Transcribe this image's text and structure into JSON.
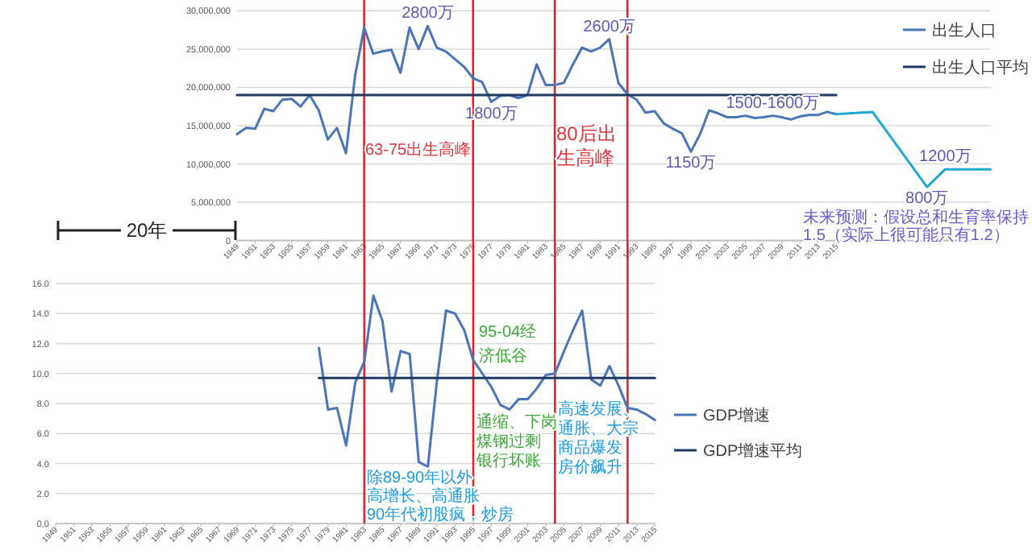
{
  "chart_data": [
    {
      "type": "line",
      "grid": "y",
      "legend": "right",
      "xlim": [
        1949,
        2032
      ],
      "xticks": [
        1949,
        1951,
        1953,
        1955,
        1957,
        1959,
        1961,
        1963,
        1965,
        1967,
        1969,
        1971,
        1973,
        1975,
        1977,
        1979,
        1981,
        1983,
        1985,
        1987,
        1989,
        1991,
        1993,
        1995,
        1997,
        1999,
        2001,
        2003,
        2005,
        2007,
        2009,
        2011,
        2013,
        2015
      ],
      "ylim": [
        0,
        30000000
      ],
      "yticks": [
        0,
        {
          "value": 5000000,
          "label": "5,000,000"
        },
        {
          "value": 10000000,
          "label": "10,000,000"
        },
        {
          "value": 15000000,
          "label": "15,000,000"
        },
        {
          "value": 20000000,
          "label": "20,000,000"
        },
        {
          "value": 25000000,
          "label": "25,000,000"
        },
        {
          "value": 30000000,
          "label": "30,000,000"
        }
      ],
      "series": [
        {
          "name": "出生人口",
          "color": "#4a76b8",
          "x": [
            1949,
            1950,
            1951,
            1952,
            1953,
            1954,
            1955,
            1956,
            1957,
            1958,
            1959,
            1960,
            1961,
            1962,
            1963,
            1964,
            1965,
            1966,
            1967,
            1968,
            1969,
            1970,
            1971,
            1972,
            1973,
            1974,
            1975,
            1976,
            1977,
            1978,
            1979,
            1980,
            1981,
            1982,
            1983,
            1984,
            1985,
            1986,
            1987,
            1988,
            1989,
            1990,
            1991,
            1992,
            1993,
            1994,
            1995,
            1996,
            1997,
            1998,
            1999,
            2000,
            2001,
            2002,
            2003,
            2004,
            2005,
            2006,
            2007,
            2008,
            2009,
            2010,
            2011,
            2012,
            2013,
            2014,
            2015
          ],
          "values": [
            13900000,
            14700000,
            14600000,
            17200000,
            16900000,
            18400000,
            18500000,
            17500000,
            19000000,
            17000000,
            13200000,
            14700000,
            11400000,
            21500000,
            27800000,
            24400000,
            24700000,
            24900000,
            21900000,
            27800000,
            25000000,
            28000000,
            25200000,
            24700000,
            23700000,
            22700000,
            21200000,
            20700000,
            18100000,
            18900000,
            19000000,
            18600000,
            19000000,
            23000000,
            20300000,
            20300000,
            20600000,
            23000000,
            25200000,
            24700000,
            25200000,
            26300000,
            20600000,
            19100000,
            18400000,
            16700000,
            16900000,
            15300000,
            14600000,
            14000000,
            11600000,
            13900000,
            17000000,
            16600000,
            16100000,
            16100000,
            16300000,
            16000000,
            16100000,
            16300000,
            16100000,
            15800000,
            16200000,
            16400000,
            16400000,
            16800000,
            16500000
          ]
        },
        {
          "color": "#1fa8d0",
          "x": [
            2015,
            2019,
            2025,
            2027,
            2032
          ],
          "values": [
            16500000,
            16800000,
            7000000,
            9300000,
            9300000
          ]
        },
        {
          "name": "出生人口平均",
          "color": "#1f3a60",
          "x": [
            1949,
            2015
          ],
          "values": [
            19000000,
            19000000
          ]
        }
      ],
      "ref_lines": [
        {
          "axis": "x",
          "value": 1963,
          "color": "#d9262b"
        },
        {
          "axis": "x",
          "value": 1975,
          "color": "#d9262b"
        },
        {
          "axis": "x",
          "value": 1984,
          "color": "#d9262b"
        },
        {
          "axis": "x",
          "value": 1992,
          "color": "#d9262b"
        }
      ],
      "annotations": [
        {
          "text": "2800万",
          "x": 1970,
          "y": 28000000
        },
        {
          "text": "1800万",
          "x": 1977,
          "y": 18100000
        },
        {
          "text": "2600万",
          "x": 1990,
          "y": 26300000
        },
        {
          "text": "1150万",
          "x": 1999,
          "y": 11600000
        },
        {
          "text": "1500-1600万",
          "x": 2008,
          "y": 16300000
        },
        {
          "text": "800万",
          "x": 2025,
          "y": 7000000
        },
        {
          "text": "1200万",
          "x": 2027,
          "y": 9300000
        },
        "63-75出生高峰",
        "80后出生高峰",
        "未来预测：假设总和生育率保持1.5（实际上很可能只有1.2）",
        "20年"
      ]
    },
    {
      "type": "line",
      "grid": "y",
      "legend": "right",
      "xlim": [
        1949,
        2015
      ],
      "xticks": [
        1949,
        1951,
        1953,
        1955,
        1957,
        1959,
        1961,
        1963,
        1965,
        1967,
        1969,
        1971,
        1973,
        1975,
        1977,
        1979,
        1981,
        1983,
        1985,
        1987,
        1989,
        1991,
        1993,
        1995,
        1997,
        1999,
        2001,
        2003,
        2005,
        2007,
        2009,
        2011,
        2013,
        2015
      ],
      "ylim": [
        0,
        16
      ],
      "yticks": [
        {
          "value": 0,
          "label": "0.0"
        },
        {
          "value": 2,
          "label": "2.0"
        },
        {
          "value": 4,
          "label": "4.0"
        },
        {
          "value": 6,
          "label": "6.0"
        },
        {
          "value": 8,
          "label": "8.0"
        },
        {
          "value": 10,
          "label": "10.0"
        },
        {
          "value": 12,
          "label": "12.0"
        },
        {
          "value": 14,
          "label": "14.0"
        },
        {
          "value": 16,
          "label": "16.0"
        }
      ],
      "series": [
        {
          "name": "GDP增速",
          "color": "#4a76b8",
          "x": [
            1978,
            1979,
            1980,
            1981,
            1982,
            1983,
            1984,
            1985,
            1986,
            1987,
            1988,
            1989,
            1990,
            1991,
            1992,
            1993,
            1994,
            1995,
            1996,
            1997,
            1998,
            1999,
            2000,
            2001,
            2002,
            2003,
            2004,
            2005,
            2006,
            2007,
            2008,
            2009,
            2010,
            2011,
            2012,
            2013,
            2014,
            2015
          ],
          "values": [
            11.7,
            7.6,
            7.7,
            5.2,
            9.4,
            10.8,
            15.2,
            13.5,
            8.8,
            11.5,
            11.3,
            4.1,
            3.8,
            9.5,
            14.2,
            14.0,
            12.9,
            10.9,
            10.0,
            9.1,
            7.9,
            7.6,
            8.3,
            8.3,
            9.0,
            9.9,
            10.0,
            11.5,
            12.9,
            14.2,
            9.6,
            9.2,
            10.5,
            9.2,
            7.7,
            7.6,
            7.3,
            6.9
          ]
        },
        {
          "name": "GDP增速平均",
          "color": "#1f3a60",
          "x": [
            1978,
            2015
          ],
          "values": [
            9.7,
            9.7
          ]
        }
      ],
      "ref_lines": [
        {
          "axis": "x",
          "value": 1983,
          "color": "#d9262b"
        },
        {
          "axis": "x",
          "value": 1995,
          "color": "#d9262b"
        },
        {
          "axis": "x",
          "value": 2004,
          "color": "#d9262b"
        },
        {
          "axis": "x",
          "value": 2012,
          "color": "#d9262b"
        }
      ],
      "annotations": [
        "95-04经济低谷",
        "通缩、下岗煤钢过剩银行坏账",
        "除89-90年以外高增长、高通胀90年代初股疯，炒房",
        "高速发展、通胀、大宗商品爆发房价飙升"
      ]
    }
  ]
}
